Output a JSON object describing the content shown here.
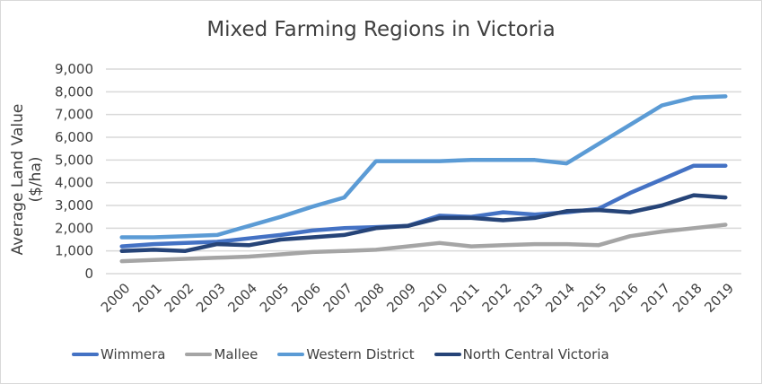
{
  "chart_data": {
    "type": "line",
    "title": "Mixed Farming Regions in Victoria",
    "xlabel": "",
    "ylabel": "Average Land Value ($/ha)",
    "ylim": [
      0,
      9000
    ],
    "yticks": [
      "0",
      "1,000",
      "2,000",
      "3,000",
      "4,000",
      "5,000",
      "6,000",
      "7,000",
      "8,000",
      "9,000"
    ],
    "grid": true,
    "legend_position": "bottom",
    "categories": [
      "2000",
      "2001",
      "2002",
      "2003",
      "2004",
      "2005",
      "2006",
      "2007",
      "2008",
      "2009",
      "2010",
      "2011",
      "2012",
      "2013",
      "2014",
      "2015",
      "2016",
      "2017",
      "2018",
      "2019"
    ],
    "series": [
      {
        "name": "Wimmera",
        "color": "#4472c4",
        "values": [
          1200,
          1300,
          1350,
          1400,
          1550,
          1700,
          1900,
          2000,
          2050,
          2100,
          2550,
          2500,
          2700,
          2600,
          2700,
          2850,
          3550,
          4150,
          4750,
          4750
        ]
      },
      {
        "name": "Mallee",
        "color": "#a5a5a5",
        "values": [
          550,
          600,
          650,
          700,
          750,
          850,
          950,
          1000,
          1050,
          1200,
          1350,
          1200,
          1250,
          1300,
          1300,
          1250,
          1650,
          1850,
          2000,
          2150
        ]
      },
      {
        "name": "Western District",
        "color": "#5b9bd5",
        "values": [
          1600,
          1600,
          1650,
          1700,
          2100,
          2500,
          2950,
          3350,
          4950,
          4950,
          4950,
          5000,
          5000,
          5000,
          4850,
          5700,
          6550,
          7400,
          7750,
          7800
        ]
      },
      {
        "name": "North Central Victoria",
        "color": "#264478",
        "values": [
          1000,
          1050,
          1000,
          1300,
          1250,
          1500,
          1600,
          1700,
          2000,
          2100,
          2450,
          2450,
          2350,
          2450,
          2750,
          2800,
          2700,
          3000,
          3450,
          3350
        ]
      }
    ]
  }
}
